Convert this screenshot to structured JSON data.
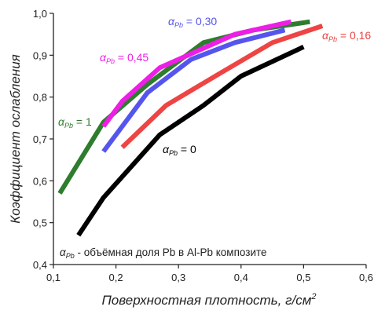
{
  "chart_data": {
    "type": "line",
    "xlabel": "Поверхностная плотность, г/см",
    "xlabel_sup": "2",
    "ylabel": "Коэффициент ослабления",
    "xlim": [
      0.1,
      0.6
    ],
    "ylim": [
      0.4,
      1.0
    ],
    "x_ticks": [
      0.1,
      0.2,
      0.3,
      0.4,
      0.5,
      0.6
    ],
    "y_ticks": [
      0.4,
      0.5,
      0.6,
      0.7,
      0.8,
      0.9,
      1.0
    ],
    "x_tick_labels": [
      "0,1",
      "0,2",
      "0,3",
      "0,4",
      "0,5",
      "0,6"
    ],
    "y_tick_labels": [
      "0,4",
      "0,5",
      "0,6",
      "0,7",
      "0,8",
      "0,9",
      "1,0"
    ],
    "grid": false,
    "note": {
      "symbol": "α",
      "subscript": "Pb",
      "text": " - объёмная доля Pb в Al-Pb композите"
    },
    "series": [
      {
        "symbol": "α",
        "subscript": "Pb",
        "value_text": " = 1",
        "color": "#2e7d2e",
        "x": [
          0.11,
          0.18,
          0.25,
          0.34,
          0.42,
          0.51
        ],
        "y": [
          0.57,
          0.74,
          0.83,
          0.93,
          0.96,
          0.98
        ]
      },
      {
        "symbol": "α",
        "subscript": "Pb",
        "value_text": " = 0,45",
        "color": "#ee1ee6",
        "x": [
          0.18,
          0.21,
          0.27,
          0.33,
          0.39,
          0.48
        ],
        "y": [
          0.73,
          0.79,
          0.87,
          0.91,
          0.95,
          0.98
        ]
      },
      {
        "symbol": "α",
        "subscript": "Pb",
        "value_text": " = 0,30",
        "color": "#5555ee",
        "x": [
          0.18,
          0.25,
          0.32,
          0.39,
          0.47
        ],
        "y": [
          0.67,
          0.81,
          0.89,
          0.93,
          0.96
        ]
      },
      {
        "symbol": "α",
        "subscript": "Pb",
        "value_text": " = 0,16",
        "color": "#ee4444",
        "x": [
          0.21,
          0.28,
          0.37,
          0.45,
          0.53
        ],
        "y": [
          0.68,
          0.78,
          0.86,
          0.93,
          0.97
        ]
      },
      {
        "symbol": "α",
        "subscript": "Pb",
        "value_text": " = 0",
        "color": "#000000",
        "x": [
          0.14,
          0.18,
          0.27,
          0.34,
          0.4,
          0.5
        ],
        "y": [
          0.47,
          0.56,
          0.71,
          0.78,
          0.85,
          0.92
        ]
      }
    ]
  }
}
